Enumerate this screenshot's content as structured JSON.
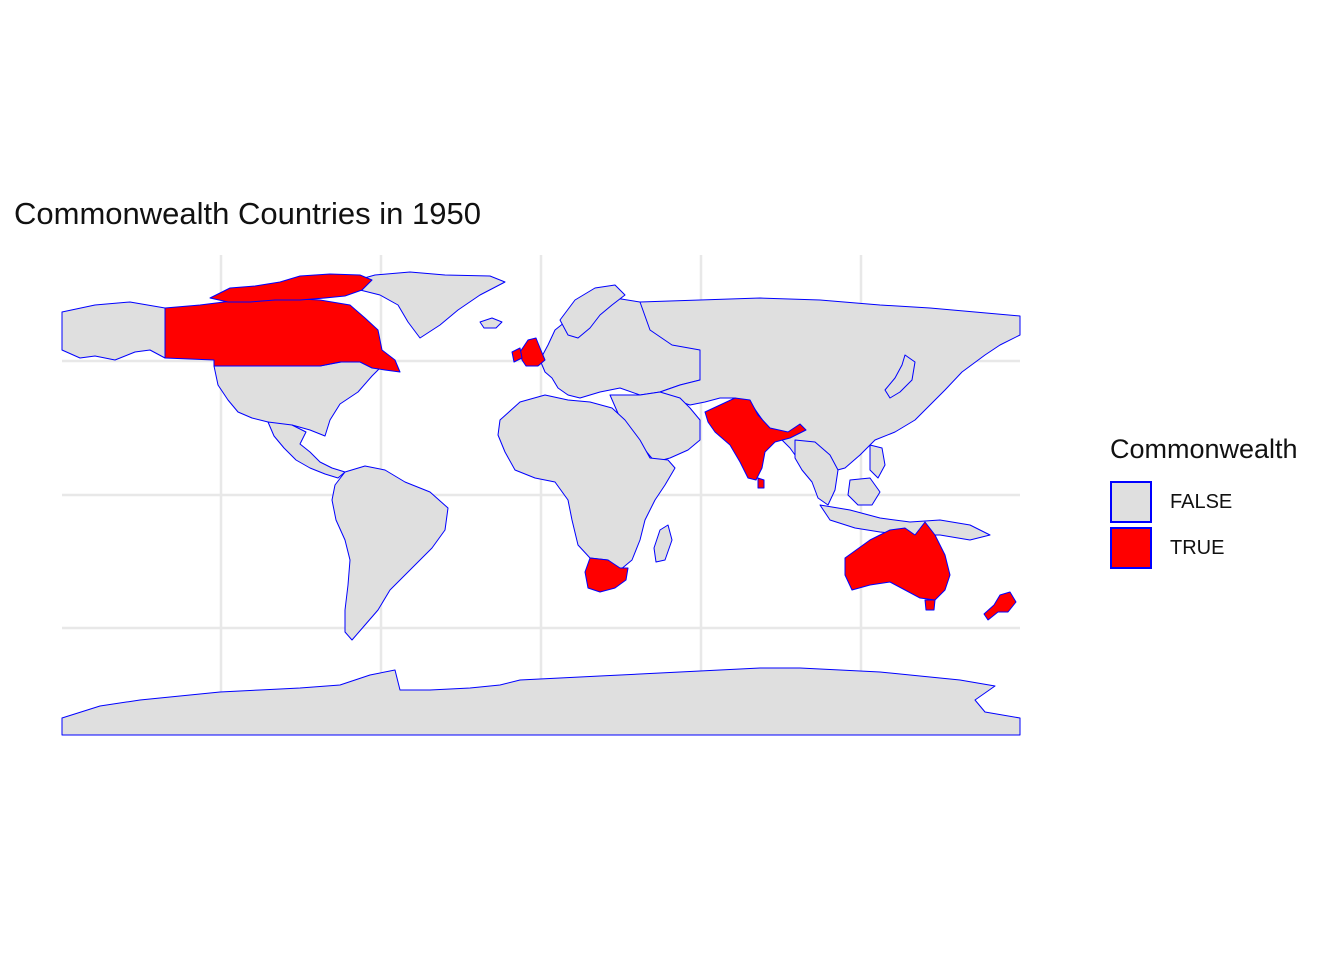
{
  "title": "Commonwealth Countries in 1950",
  "legend": {
    "title": "Commonwealth",
    "items": [
      {
        "label": "FALSE",
        "color": "#dfdfdf"
      },
      {
        "label": "TRUE",
        "color": "#ff0000"
      }
    ]
  },
  "colors": {
    "background": "#ffffff",
    "grid": "#e8e8e8",
    "border": "#0000ff",
    "land": "#dfdfdf",
    "commonwealth": "#ff0000"
  },
  "map": {
    "projection": "equirectangular",
    "grid": true,
    "graticule": {
      "longitudes": [
        -120,
        -60,
        0,
        60,
        120
      ],
      "latitudes": [
        -60,
        -30,
        0,
        30,
        60
      ]
    },
    "commonwealth_1950": [
      "Canada",
      "United Kingdom",
      "India",
      "Pakistan",
      "Sri Lanka",
      "South Africa",
      "Australia",
      "New Zealand"
    ]
  }
}
